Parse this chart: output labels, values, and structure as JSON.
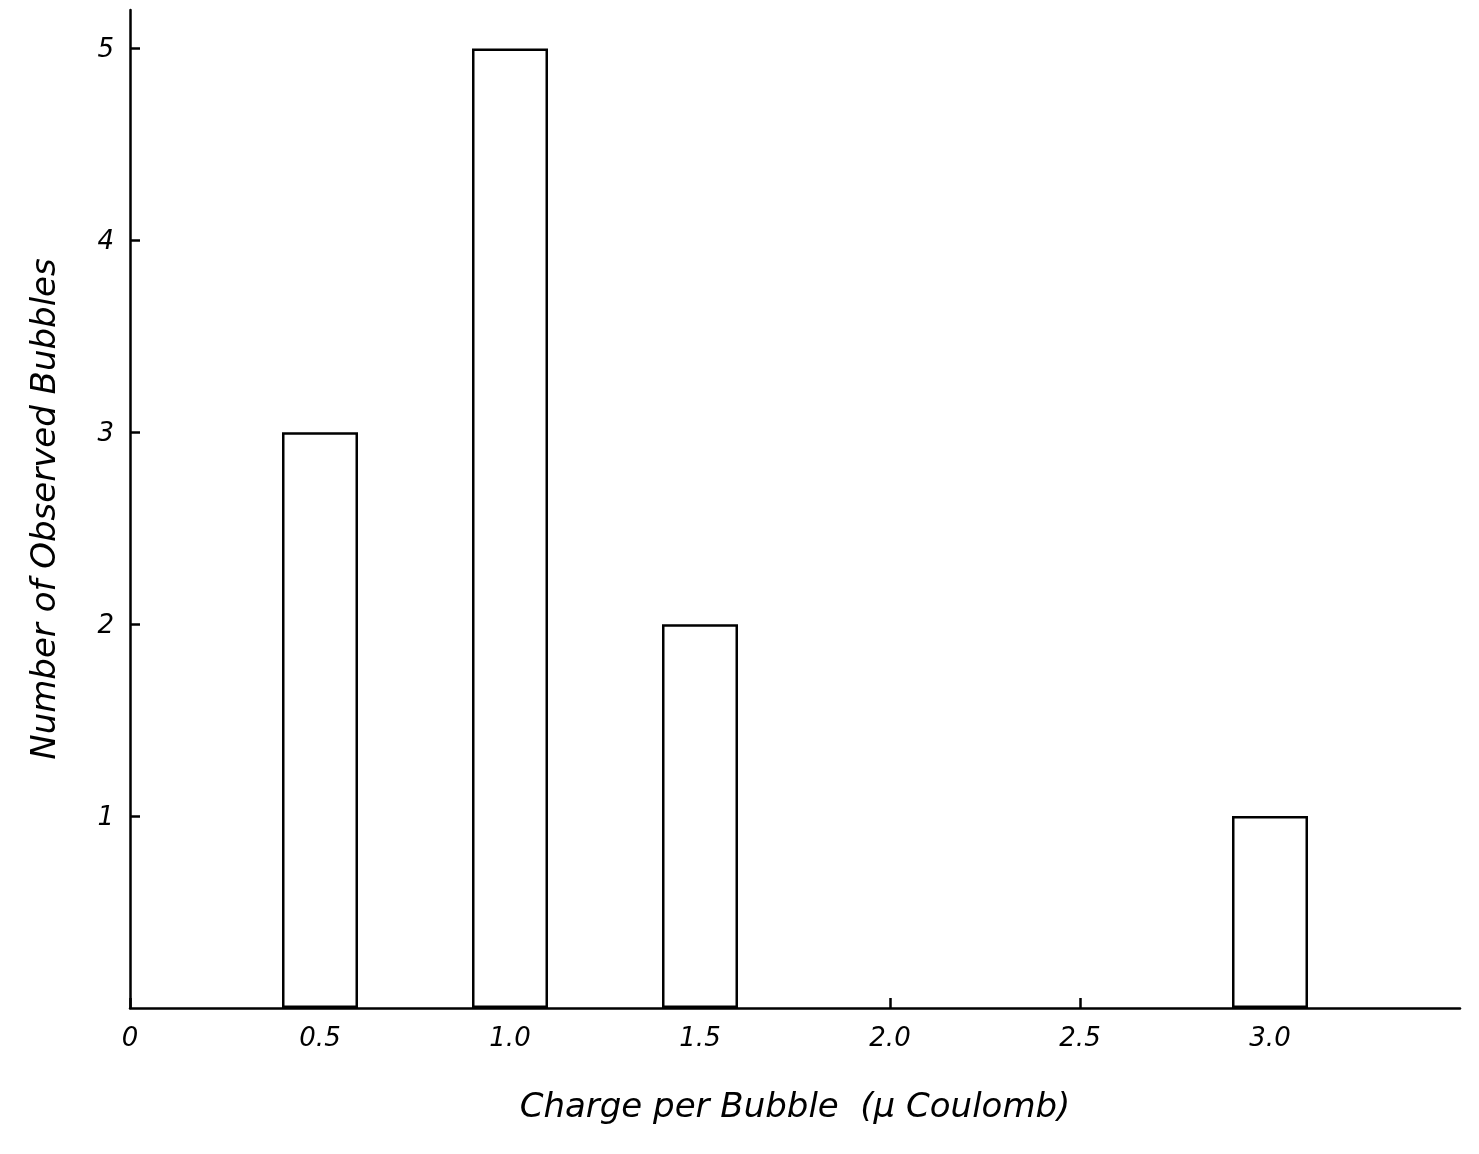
{
  "chart_data": {
    "type": "bar",
    "xlabel": "Charge per Bubble  (μ Coulomb)",
    "ylabel": "Number of Observed Bubbles",
    "x": [
      0.5,
      1.0,
      1.5,
      3.0
    ],
    "values": [
      3,
      5,
      2,
      1
    ],
    "color": "#ffffff",
    "xlim": [
      0,
      3.5
    ],
    "xticks": [
      0,
      0.5,
      {
        "value": 1,
        "label": "1.0"
      },
      1.5,
      {
        "value": 2,
        "label": "2.0"
      },
      2.5,
      {
        "value": 3,
        "label": "3.0"
      }
    ],
    "ylim": [
      0,
      5.2
    ],
    "yticks": [
      1,
      2,
      3,
      4,
      5
    ],
    "grid": false
  }
}
